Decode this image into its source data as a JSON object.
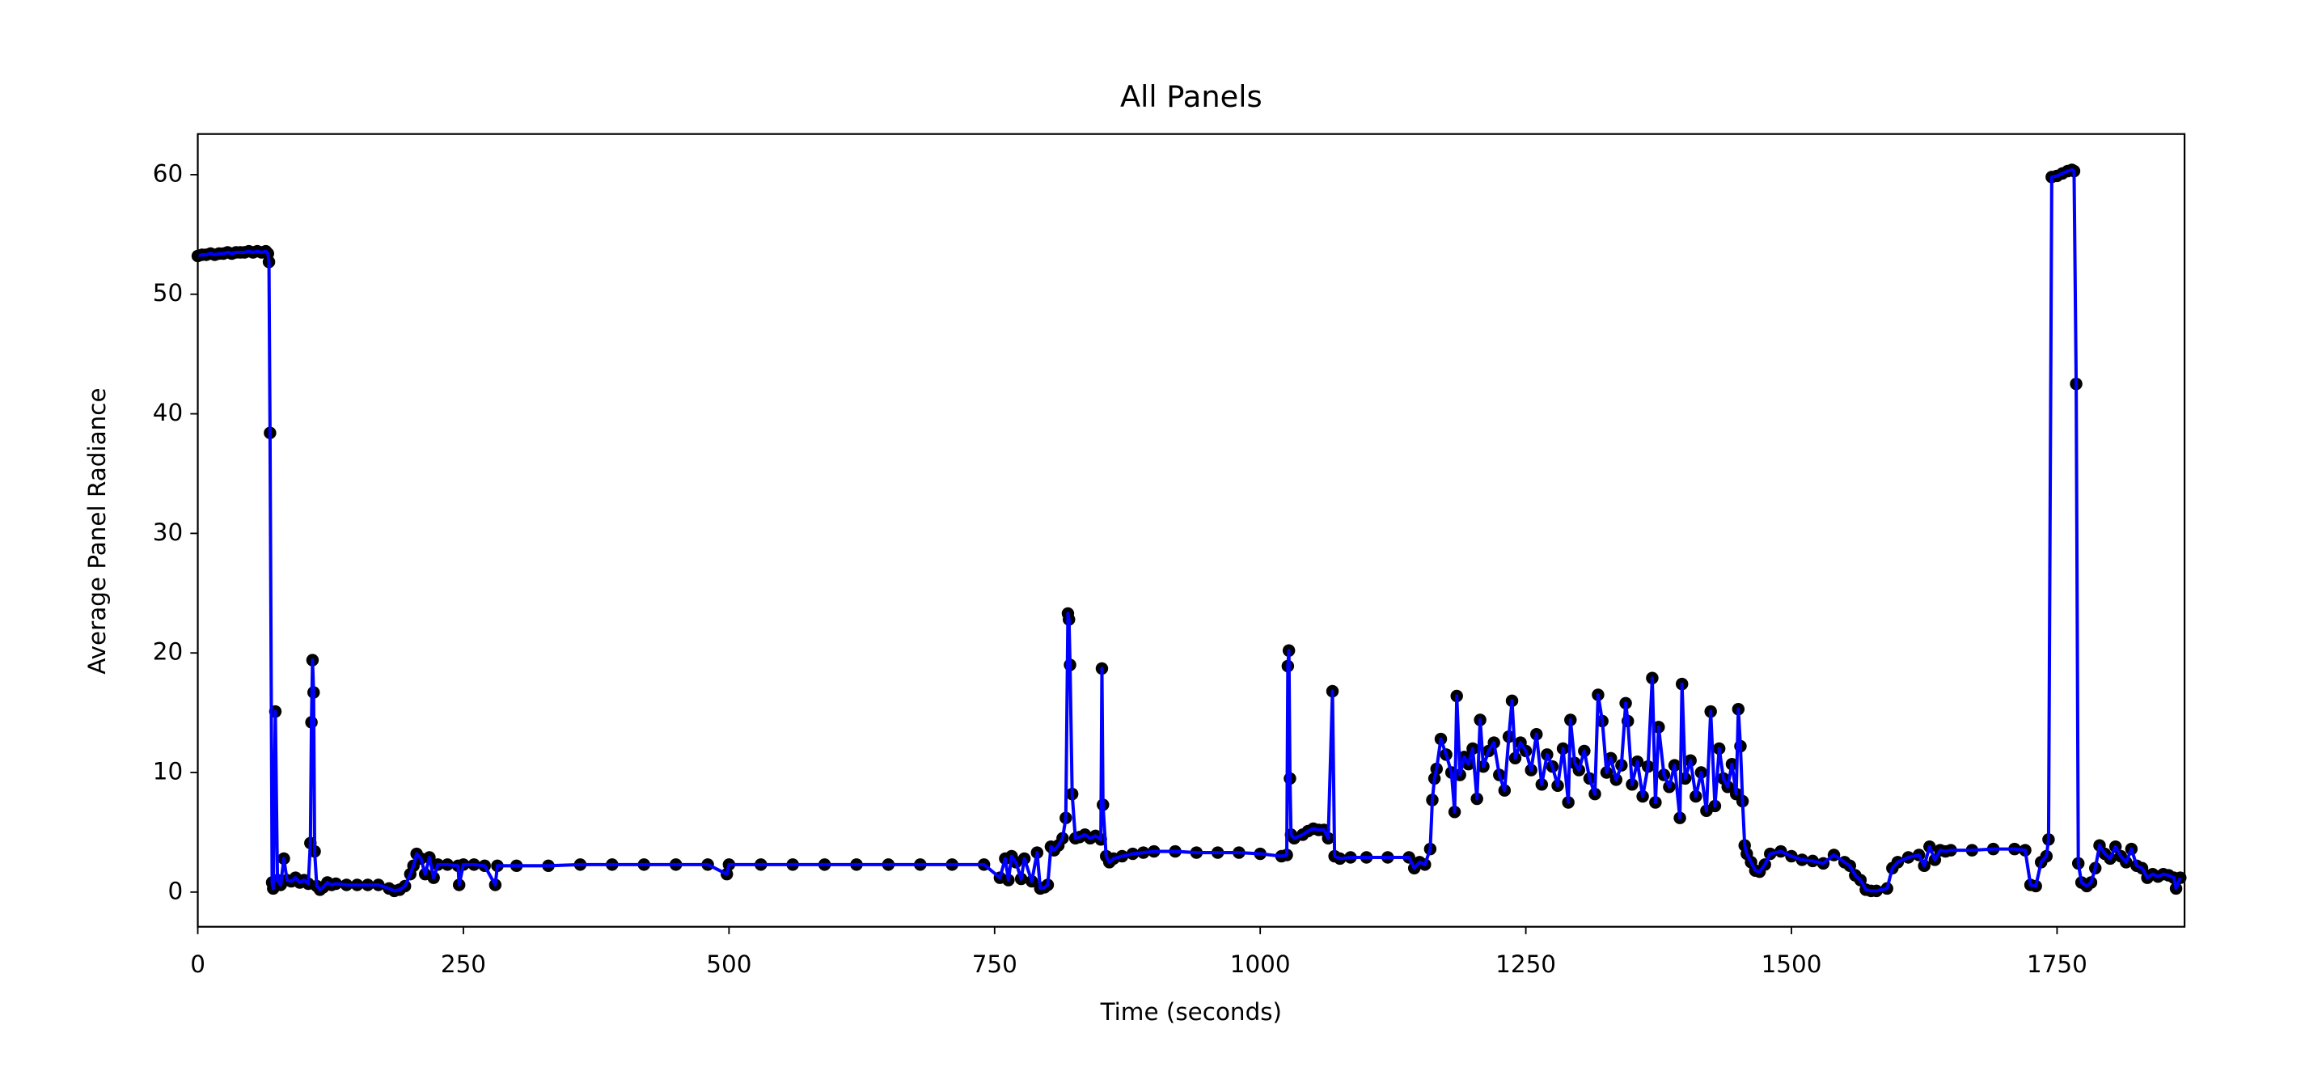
{
  "chart_data": {
    "type": "line",
    "title": "All Panels",
    "xlabel": "Time (seconds)",
    "ylabel": "Average Panel Radiance",
    "x": [
      0,
      4,
      8,
      12,
      16,
      20,
      24,
      28,
      32,
      36,
      40,
      44,
      48,
      52,
      56,
      60,
      64,
      66,
      67,
      68,
      70,
      71,
      73,
      75,
      78,
      81,
      84,
      88,
      92,
      96,
      100,
      104,
      106,
      107,
      108,
      109,
      110,
      112,
      115,
      118,
      122,
      126,
      130,
      140,
      150,
      160,
      170,
      180,
      185,
      190,
      195,
      200,
      203,
      206,
      210,
      214,
      218,
      222,
      226,
      235,
      245,
      246,
      250,
      260,
      270,
      280,
      282,
      300,
      330,
      360,
      390,
      420,
      450,
      480,
      498,
      500,
      530,
      560,
      590,
      620,
      650,
      680,
      710,
      740,
      755,
      760,
      763,
      766,
      770,
      775,
      778,
      785,
      790,
      793,
      797,
      800,
      803,
      806,
      810,
      814,
      817,
      819,
      820,
      821,
      823,
      826,
      830,
      835,
      840,
      845,
      850,
      851,
      852,
      855,
      858,
      862,
      870,
      880,
      890,
      900,
      920,
      940,
      960,
      980,
      1000,
      1020,
      1025,
      1026,
      1027,
      1028,
      1029,
      1032,
      1040,
      1045,
      1050,
      1055,
      1060,
      1064,
      1068,
      1070,
      1075,
      1085,
      1100,
      1120,
      1140,
      1145,
      1150,
      1155,
      1160,
      1162,
      1164,
      1166,
      1170,
      1175,
      1180,
      1183,
      1185,
      1188,
      1192,
      1196,
      1200,
      1204,
      1207,
      1210,
      1215,
      1220,
      1225,
      1230,
      1234,
      1237,
      1240,
      1245,
      1250,
      1255,
      1260,
      1265,
      1270,
      1275,
      1280,
      1285,
      1290,
      1292,
      1296,
      1300,
      1305,
      1310,
      1315,
      1318,
      1322,
      1326,
      1330,
      1335,
      1340,
      1344,
      1346,
      1350,
      1355,
      1360,
      1365,
      1369,
      1372,
      1375,
      1380,
      1385,
      1390,
      1395,
      1397,
      1400,
      1405,
      1410,
      1415,
      1420,
      1424,
      1428,
      1432,
      1436,
      1440,
      1444,
      1448,
      1450,
      1452,
      1454,
      1456,
      1458,
      1462,
      1466,
      1470,
      1475,
      1480,
      1490,
      1500,
      1510,
      1520,
      1530,
      1540,
      1550,
      1555,
      1560,
      1565,
      1570,
      1575,
      1580,
      1590,
      1595,
      1600,
      1610,
      1620,
      1625,
      1630,
      1635,
      1640,
      1645,
      1650,
      1670,
      1690,
      1710,
      1720,
      1725,
      1730,
      1735,
      1740,
      1742,
      1745,
      1750,
      1755,
      1760,
      1764,
      1766,
      1768,
      1770,
      1773,
      1778,
      1782,
      1786,
      1790,
      1795,
      1800,
      1805,
      1810,
      1815,
      1820,
      1825,
      1830,
      1835,
      1840,
      1845,
      1850,
      1855,
      1860,
      1862,
      1866
    ],
    "series": [
      {
        "color": "#0000ff",
        "marker_color": "#000000",
        "values": [
          53.2,
          53.3,
          53.3,
          53.4,
          53.3,
          53.4,
          53.4,
          53.5,
          53.4,
          53.5,
          53.5,
          53.5,
          53.6,
          53.5,
          53.6,
          53.5,
          53.6,
          53.4,
          52.7,
          38.4,
          0.8,
          0.3,
          15.1,
          1.0,
          0.6,
          2.8,
          1.0,
          0.9,
          1.2,
          0.8,
          1.0,
          0.7,
          4.1,
          14.2,
          19.4,
          16.7,
          3.4,
          0.5,
          0.2,
          0.4,
          0.8,
          0.6,
          0.7,
          0.6,
          0.6,
          0.6,
          0.6,
          0.3,
          0.1,
          0.2,
          0.5,
          1.5,
          2.2,
          3.2,
          2.8,
          1.5,
          2.9,
          1.2,
          2.3,
          2.3,
          2.2,
          0.6,
          2.3,
          2.3,
          2.2,
          0.6,
          2.2,
          2.2,
          2.2,
          2.3,
          2.3,
          2.3,
          2.3,
          2.3,
          1.5,
          2.3,
          2.3,
          2.3,
          2.3,
          2.3,
          2.3,
          2.3,
          2.3,
          2.3,
          1.2,
          2.8,
          1.0,
          3.0,
          2.5,
          1.1,
          2.8,
          0.9,
          3.3,
          0.3,
          0.4,
          0.6,
          3.8,
          3.5,
          3.9,
          4.5,
          6.2,
          23.3,
          22.8,
          19.0,
          8.2,
          4.5,
          4.6,
          4.8,
          4.5,
          4.7,
          4.4,
          18.7,
          7.3,
          3.0,
          2.5,
          2.8,
          3.0,
          3.2,
          3.3,
          3.4,
          3.4,
          3.3,
          3.3,
          3.3,
          3.2,
          3.0,
          3.1,
          18.9,
          20.2,
          9.5,
          4.8,
          4.5,
          4.8,
          5.1,
          5.3,
          5.2,
          5.2,
          4.5,
          16.8,
          3.0,
          2.8,
          2.9,
          2.9,
          2.9,
          2.9,
          2.0,
          2.5,
          2.3,
          3.6,
          7.7,
          9.5,
          10.3,
          12.8,
          11.5,
          10.0,
          6.7,
          16.4,
          9.8,
          11.3,
          10.7,
          12.0,
          7.8,
          14.4,
          10.5,
          11.8,
          12.5,
          9.8,
          8.5,
          13.0,
          16.0,
          11.2,
          12.5,
          11.8,
          10.2,
          13.2,
          9.0,
          11.5,
          10.5,
          8.9,
          12.0,
          7.5,
          14.4,
          10.8,
          10.2,
          11.8,
          9.5,
          8.2,
          16.5,
          14.3,
          10.0,
          11.2,
          9.4,
          10.6,
          15.8,
          14.3,
          9.0,
          10.9,
          8.0,
          10.5,
          17.9,
          7.5,
          13.8,
          9.8,
          8.8,
          10.6,
          6.2,
          17.4,
          9.5,
          11.0,
          8.0,
          10.0,
          6.8,
          15.1,
          7.2,
          12.0,
          9.5,
          8.8,
          10.7,
          8.2,
          15.3,
          12.2,
          7.6,
          3.9,
          3.2,
          2.5,
          1.8,
          1.7,
          2.3,
          3.2,
          3.4,
          3.0,
          2.7,
          2.6,
          2.4,
          3.1,
          2.5,
          2.2,
          1.4,
          1.0,
          0.2,
          0.1,
          0.1,
          0.3,
          2.0,
          2.5,
          2.9,
          3.1,
          2.2,
          3.8,
          2.7,
          3.5,
          3.4,
          3.5,
          3.5,
          3.6,
          3.6,
          3.5,
          0.6,
          0.5,
          2.5,
          3.0,
          4.4,
          59.8,
          59.9,
          60.1,
          60.3,
          60.4,
          60.3,
          42.5,
          2.4,
          0.8,
          0.5,
          0.8,
          2.0,
          3.9,
          3.2,
          2.8,
          3.8,
          3.0,
          2.5,
          3.6,
          2.2,
          2.0,
          1.2,
          1.5,
          1.3,
          1.5,
          1.4,
          1.2,
          0.3,
          1.2
        ]
      }
    ],
    "xlim": [
      0,
      1870
    ],
    "ylim": [
      -2.9,
      63.4
    ],
    "xticks": [
      0,
      250,
      500,
      750,
      1000,
      1250,
      1500,
      1750
    ],
    "yticks": [
      0,
      10,
      20,
      30,
      40,
      50,
      60
    ]
  }
}
